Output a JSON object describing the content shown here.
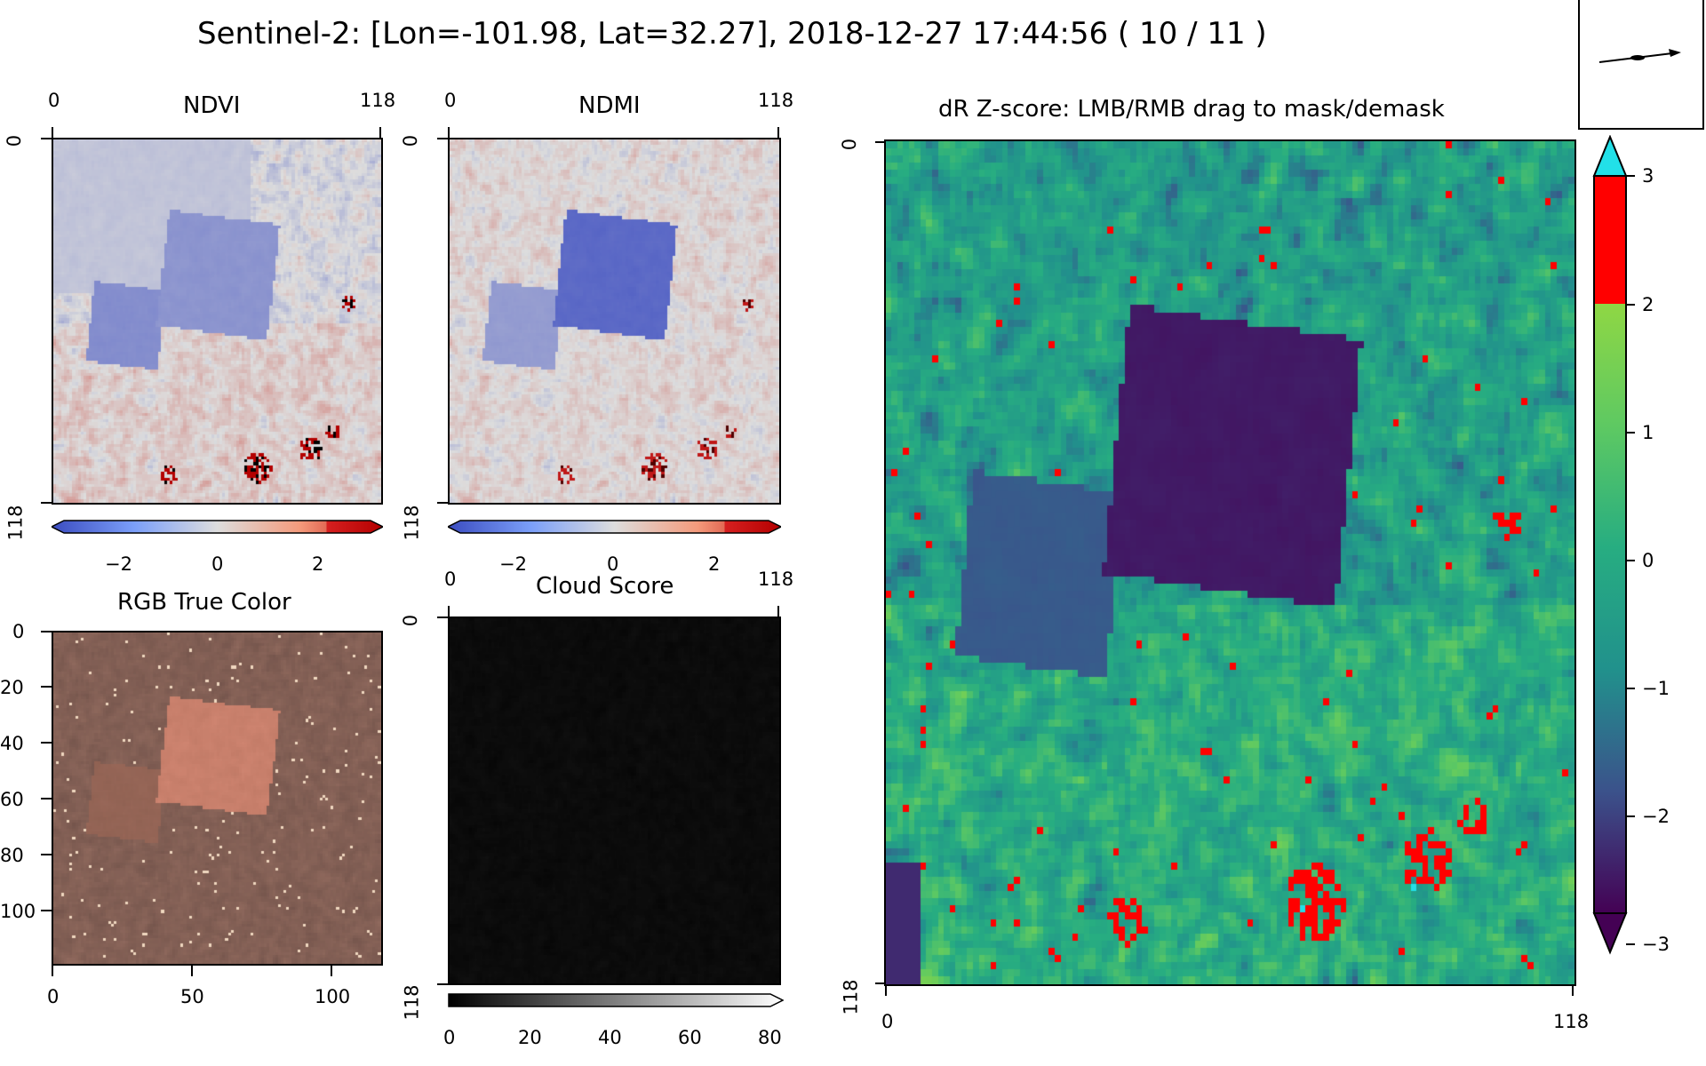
{
  "window": {
    "title": "Sentinel-2: [Lon=-101.98, Lat=32.27], 2018-12-27 17:44:56 ( 10 / 11 )"
  },
  "panels": {
    "ndvi": {
      "title": "NDVI",
      "x_ticks": [
        "0",
        "118"
      ],
      "y_ticks": [
        "0",
        "118"
      ],
      "colorbar": {
        "ticks": [
          "−2",
          "0",
          "2"
        ],
        "cmap": "coolwarm-red-ext",
        "range": [
          -3,
          3
        ]
      }
    },
    "ndmi": {
      "title": "NDMI",
      "x_ticks": [
        "0",
        "118"
      ],
      "y_ticks": [
        "0",
        "118"
      ],
      "colorbar": {
        "ticks": [
          "−2",
          "0",
          "2"
        ],
        "cmap": "coolwarm-red-ext",
        "range": [
          -3,
          3
        ]
      }
    },
    "rgb": {
      "title": "RGB True Color",
      "x_ticks": [
        "0",
        "50",
        "100"
      ],
      "y_ticks": [
        "0",
        "20",
        "40",
        "60",
        "80",
        "100"
      ]
    },
    "cloud": {
      "title": "Cloud Score",
      "x_ticks": [
        "0",
        "118"
      ],
      "y_ticks": [
        "0",
        "118"
      ],
      "colorbar": {
        "ticks": [
          "0",
          "20",
          "40",
          "60",
          "80"
        ],
        "cmap": "gray",
        "range": [
          0,
          80
        ]
      }
    },
    "zscore": {
      "title": "dR Z-score: LMB/RMB drag to mask/demask",
      "x_ticks": [
        "0",
        "118"
      ],
      "y_ticks": [
        "0",
        "118"
      ],
      "colorbar": {
        "ticks": [
          "3",
          "2",
          "1",
          "0",
          "−1",
          "−2",
          "−3"
        ],
        "colors": {
          "over": "#22e0e8",
          "high": "#ff0000",
          "low_end": "#440154",
          "high_end": "#8fd744"
        }
      }
    }
  },
  "direction_widget": {
    "icon": "arrow-icon"
  },
  "colors": {
    "mask_red": "#ff0000",
    "mask_cyan": "#22e0e8",
    "soil_red": "#b2182b",
    "veg_blue": "#4f73d8"
  }
}
